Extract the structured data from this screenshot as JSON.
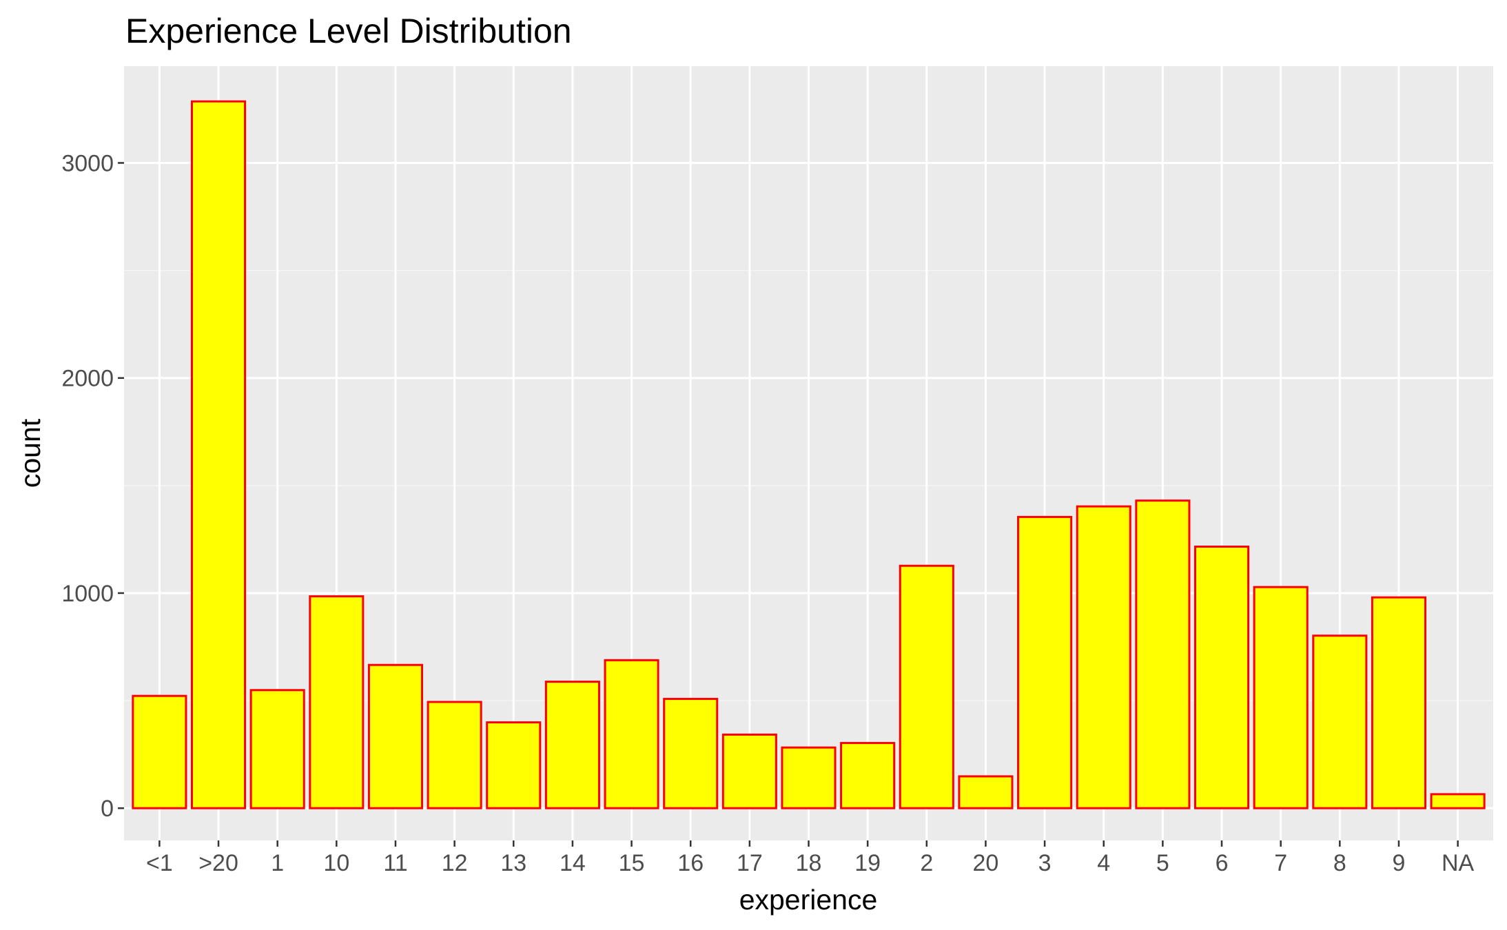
{
  "chart_data": {
    "type": "bar",
    "title": "Experience Level Distribution",
    "xlabel": "experience",
    "ylabel": "count",
    "categories": [
      "<1",
      ">20",
      "1",
      "10",
      "11",
      "12",
      "13",
      "14",
      "15",
      "16",
      "17",
      "18",
      "19",
      "2",
      "20",
      "3",
      "4",
      "5",
      "6",
      "7",
      "8",
      "9",
      "NA"
    ],
    "values": [
      522,
      3286,
      549,
      985,
      666,
      494,
      399,
      588,
      688,
      508,
      342,
      282,
      303,
      1127,
      148,
      1354,
      1403,
      1430,
      1216,
      1028,
      802,
      980,
      65
    ],
    "ylim": [
      -150,
      3450
    ],
    "yticks": [
      0,
      1000,
      2000,
      3000
    ],
    "ytick_labels": [
      "0",
      "1000",
      "2000",
      "3000"
    ],
    "grid": true,
    "legend": "none",
    "colors": {
      "panel_background": "#ebebeb",
      "grid_major": "#ffffff",
      "grid_minor": "#f5f5f5",
      "bar_fill": "#ffff00",
      "bar_outline": "#ff0000",
      "tick_text": "#4d4d4d",
      "axis_title_text": "#000000"
    }
  }
}
